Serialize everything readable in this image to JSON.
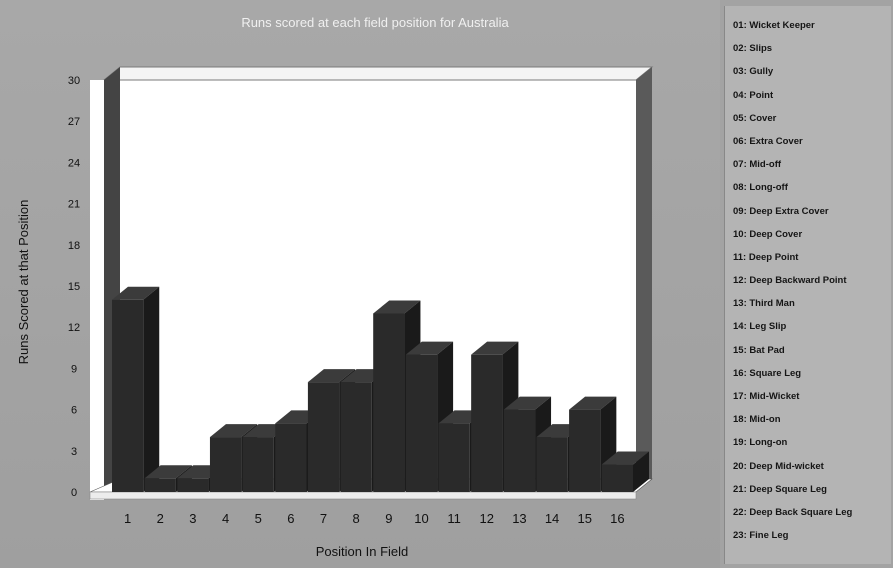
{
  "chart_data": {
    "type": "bar",
    "title": "Runs scored at each field position for Australia",
    "xlabel": "Position In Field",
    "ylabel": "Runs Scored at that Position",
    "ylim": [
      0,
      30
    ],
    "yticks": [
      "0",
      "3",
      "6",
      "9",
      "12",
      "15",
      "18",
      "21",
      "24",
      "27",
      "30"
    ],
    "categories": [
      "1",
      "2",
      "3",
      "4",
      "5",
      "6",
      "7",
      "8",
      "9",
      "10",
      "11",
      "12",
      "13",
      "14",
      "15",
      "16"
    ],
    "values": [
      14,
      1,
      1,
      4,
      4,
      5,
      8,
      8,
      13,
      10,
      5,
      10,
      6,
      4,
      6,
      2
    ],
    "style": "3d",
    "grid": false,
    "colors": {
      "bar": "#2a2a2a",
      "highlight_bar": "#050505",
      "plot_bg": "#ffffff",
      "wall": "#444444"
    }
  },
  "legend": {
    "items": [
      "01: Wicket Keeper",
      "02: Slips",
      "03: Gully",
      "04: Point",
      "05: Cover",
      "06: Extra Cover",
      "07: Mid-off",
      "08: Long-off",
      "09: Deep Extra Cover",
      "10: Deep Cover",
      "11: Deep Point",
      "12: Deep Backward Point",
      "13: Third Man",
      "14: Leg Slip",
      "15: Bat Pad",
      "16: Square Leg",
      "17: Mid-Wicket",
      "18: Mid-on",
      "19: Long-on",
      "20: Deep Mid-wicket",
      "21: Deep Square Leg",
      "22: Deep Back Square Leg",
      "23: Fine Leg"
    ]
  }
}
